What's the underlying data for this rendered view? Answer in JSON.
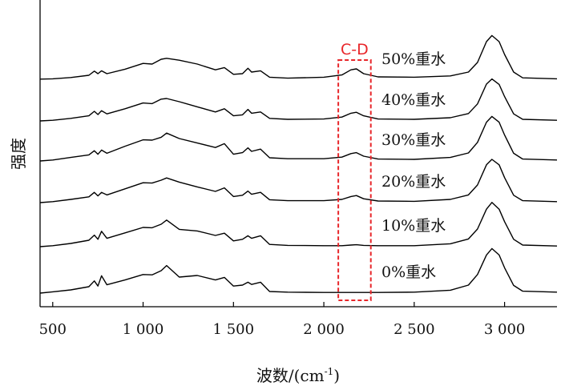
{
  "chart_data": {
    "type": "line",
    "title": "",
    "xlabel": "波数/(cm",
    "xlabel_sup": "-1",
    "xlabel_close": ")",
    "ylabel": "强度",
    "xlim": [
      430,
      3290
    ],
    "x_ticks": [
      500,
      1000,
      1500,
      2000,
      2500,
      3000
    ],
    "x_tick_labels": [
      "500",
      "1 000",
      "1 500",
      "2 000",
      "2 500",
      "3 000"
    ],
    "grid": false,
    "legend": "none",
    "line_color": "#000000",
    "annotation": {
      "label": "C-D",
      "x_range": [
        2080,
        2260
      ],
      "color": "#e8262a",
      "style": "dashed"
    },
    "x": [
      430,
      500,
      600,
      700,
      730,
      750,
      770,
      800,
      900,
      1000,
      1050,
      1100,
      1130,
      1200,
      1300,
      1400,
      1450,
      1500,
      1550,
      1580,
      1600,
      1650,
      1700,
      1800,
      2000,
      2100,
      2150,
      2180,
      2220,
      2300,
      2500,
      2700,
      2800,
      2850,
      2900,
      2930,
      2970,
      3000,
      3050,
      3100,
      3290
    ],
    "series": [
      {
        "name": "50%重水",
        "values": [
          0.3,
          0.4,
          0.8,
          1.5,
          2.8,
          2.0,
          2.9,
          2.0,
          3.4,
          5.2,
          5.0,
          6.5,
          6.8,
          6.2,
          5.0,
          3.2,
          3.9,
          1.8,
          2.0,
          3.7,
          2.5,
          2.9,
          0.9,
          0.6,
          0.9,
          1.6,
          3.2,
          3.5,
          2.0,
          1.0,
          0.9,
          1.3,
          2.5,
          5.5,
          12.0,
          13.9,
          12.0,
          8.0,
          2.5,
          0.7,
          0.4
        ]
      },
      {
        "name": "40%重水",
        "values": [
          0.0,
          0.2,
          0.8,
          1.6,
          3.0,
          2.0,
          3.2,
          2.2,
          3.8,
          5.6,
          5.4,
          6.8,
          7.0,
          6.0,
          4.4,
          2.8,
          3.8,
          1.6,
          1.9,
          3.6,
          2.4,
          2.8,
          0.8,
          0.5,
          0.6,
          1.2,
          2.4,
          2.7,
          1.6,
          0.6,
          0.5,
          1.0,
          2.3,
          5.3,
          11.5,
          13.1,
          11.4,
          7.6,
          2.2,
          0.5,
          0.2
        ]
      },
      {
        "name": "30%重水",
        "values": [
          0.0,
          0.3,
          1.1,
          1.9,
          3.2,
          2.1,
          3.4,
          2.4,
          4.6,
          6.6,
          6.5,
          7.4,
          8.7,
          7.0,
          5.6,
          4.2,
          5.4,
          2.1,
          2.6,
          4.1,
          3.0,
          3.7,
          1.0,
          0.7,
          0.7,
          1.2,
          2.3,
          2.6,
          1.5,
          0.6,
          0.5,
          1.1,
          2.5,
          5.8,
          12.1,
          13.9,
          12.1,
          8.1,
          2.4,
          0.6,
          0.3
        ]
      },
      {
        "name": "20%重水",
        "values": [
          0.0,
          0.3,
          1.0,
          1.8,
          3.2,
          2.1,
          3.2,
          2.4,
          4.3,
          6.2,
          6.1,
          7.0,
          7.7,
          6.4,
          4.9,
          3.5,
          4.6,
          1.9,
          2.3,
          3.6,
          2.6,
          3.2,
          0.9,
          0.6,
          0.6,
          1.0,
          1.9,
          2.2,
          1.2,
          0.5,
          0.4,
          1.0,
          2.4,
          5.5,
          11.8,
          13.5,
          11.8,
          7.8,
          2.3,
          0.6,
          0.3
        ]
      },
      {
        "name": "10%重水",
        "values": [
          0.0,
          0.3,
          1.0,
          2.0,
          3.6,
          2.3,
          4.8,
          2.6,
          4.3,
          6.0,
          5.9,
          7.0,
          8.3,
          5.4,
          4.9,
          3.5,
          4.2,
          1.8,
          2.3,
          3.4,
          2.6,
          3.4,
          0.7,
          0.4,
          0.3,
          0.3,
          0.5,
          0.6,
          0.4,
          0.3,
          0.3,
          0.9,
          2.4,
          5.5,
          11.7,
          13.8,
          11.7,
          7.8,
          2.3,
          0.5,
          0.2
        ]
      },
      {
        "name": "0%重水",
        "values": [
          0.0,
          0.4,
          1.0,
          2.0,
          3.8,
          2.2,
          5.4,
          2.6,
          4.1,
          5.8,
          5.7,
          7.0,
          8.6,
          5.0,
          5.5,
          4.1,
          4.9,
          2.2,
          2.5,
          3.4,
          2.7,
          3.4,
          0.5,
          0.3,
          0.2,
          0.2,
          0.2,
          0.2,
          0.2,
          0.2,
          0.3,
          0.9,
          2.5,
          5.8,
          11.9,
          13.9,
          11.9,
          7.9,
          2.4,
          0.6,
          0.3
        ]
      }
    ]
  }
}
